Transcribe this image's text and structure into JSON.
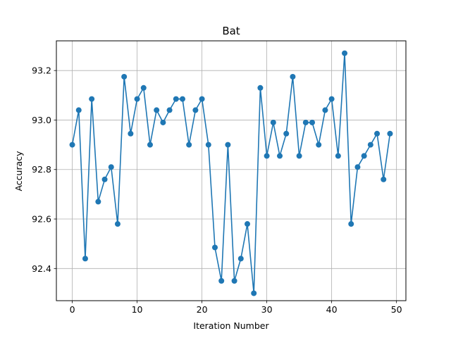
{
  "chart_data": {
    "type": "line",
    "title": "Bat",
    "xlabel": "Iteration Number",
    "ylabel": "Accuracy",
    "xlim": [
      -2.45,
      51.45
    ],
    "ylim": [
      92.27,
      93.32
    ],
    "xticks": [
      0,
      10,
      20,
      30,
      40,
      50
    ],
    "yticks": [
      92.4,
      92.6,
      92.8,
      93.0,
      93.2
    ],
    "ytick_labels": [
      "92.4",
      "92.6",
      "92.8",
      "93.0",
      "93.2"
    ],
    "grid": true,
    "color": "#1f77b4",
    "series": [
      {
        "x": [
          0,
          1,
          2,
          3,
          4,
          5,
          6,
          7,
          8,
          9,
          10,
          11,
          12,
          13,
          14,
          15,
          16,
          17,
          18,
          19,
          20,
          21,
          22,
          23,
          24,
          25,
          26,
          27,
          28,
          29,
          30,
          31,
          32,
          33,
          34,
          35,
          36,
          37,
          38,
          39,
          40,
          41,
          42,
          43,
          44,
          45,
          46,
          47,
          48,
          49
        ],
        "values": [
          92.9,
          93.04,
          92.44,
          93.085,
          92.67,
          92.76,
          92.81,
          92.58,
          93.175,
          92.945,
          93.085,
          93.13,
          92.9,
          93.04,
          92.99,
          93.04,
          93.085,
          93.085,
          92.9,
          93.04,
          93.085,
          92.9,
          92.485,
          92.35,
          92.9,
          92.35,
          92.44,
          92.58,
          92.3,
          93.13,
          92.855,
          92.99,
          92.855,
          92.945,
          93.175,
          92.855,
          92.99,
          92.99,
          92.9,
          93.04,
          93.085,
          92.855,
          93.27,
          92.58,
          92.81,
          92.855,
          92.9,
          92.945,
          92.76,
          92.945
        ]
      }
    ]
  }
}
